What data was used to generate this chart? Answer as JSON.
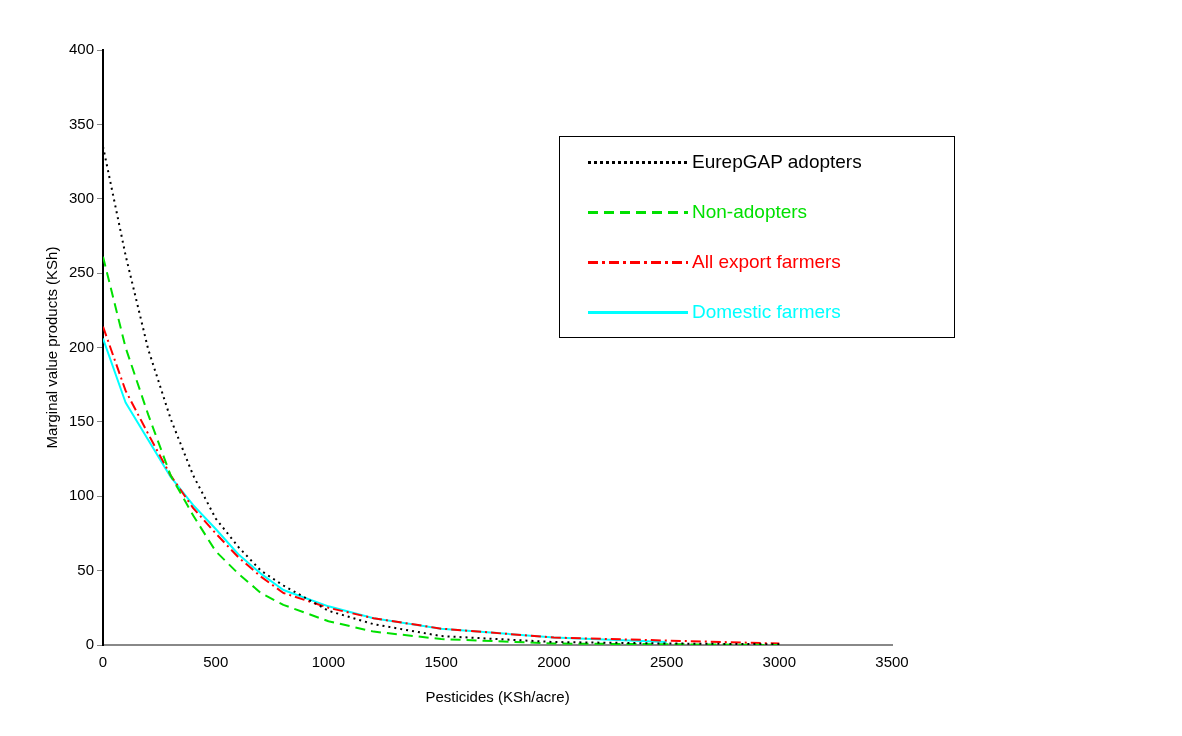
{
  "chart_data": {
    "type": "line",
    "xlabel": "Pesticides (KSh/acre)",
    "ylabel": "Marginal value products (KSh)",
    "x": [
      0,
      100,
      200,
      300,
      400,
      500,
      600,
      700,
      800,
      1000,
      1200,
      1500,
      2000,
      2500,
      3000
    ],
    "xlim": [
      0,
      3500
    ],
    "xticks": [
      0,
      500,
      1000,
      1500,
      2000,
      2500,
      3000,
      3500
    ],
    "ylim": [
      0,
      400
    ],
    "yticks": [
      0,
      50,
      100,
      150,
      200,
      250,
      300,
      350,
      400
    ],
    "grid": false,
    "legend": "top right",
    "marker": "none",
    "series": [
      {
        "name": "EurepGAP adopters",
        "color": "#000000",
        "line_style": "dotted",
        "values": [
          335,
          262,
          199,
          152,
          114,
          85,
          66,
          50,
          40,
          23,
          14,
          6,
          2,
          1,
          0.5
        ]
      },
      {
        "name": "Non-adopters",
        "color": "#00e000",
        "line_style": "dashed",
        "values": [
          261,
          200,
          155,
          114,
          87,
          63,
          48,
          35,
          27,
          16,
          9,
          4,
          1,
          0.5,
          0
        ]
      },
      {
        "name": "All export farmers",
        "color": "#ff0000",
        "line_style": "dashdot",
        "values": [
          214,
          171,
          142,
          114,
          92,
          75,
          59,
          46,
          35,
          25,
          18,
          11,
          5,
          3,
          1
        ]
      },
      {
        "name": "Domestic farmers",
        "color": "#00ffff",
        "line_style": "solid",
        "values": [
          206,
          163,
          138,
          113,
          94,
          78,
          61,
          48,
          37,
          26,
          18,
          11,
          5,
          2,
          null
        ]
      }
    ]
  }
}
